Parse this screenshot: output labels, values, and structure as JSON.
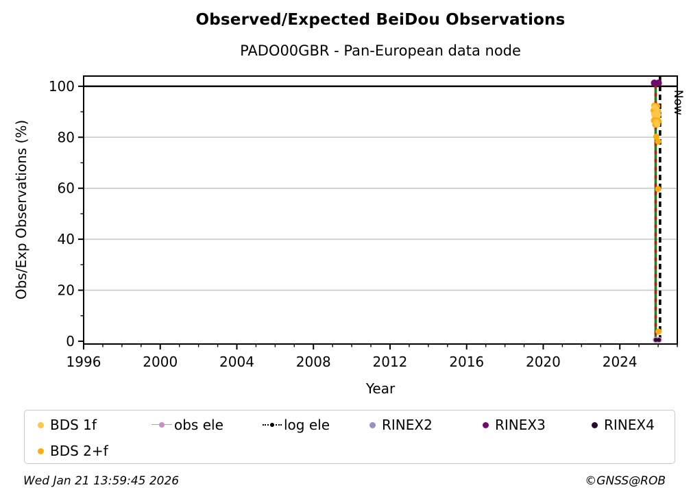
{
  "title": "Observed/Expected BeiDou Observations",
  "subtitle": "PADO00GBR - Pan-European data node",
  "footer": {
    "timestamp": "Wed Jan 21 13:59:45 2026",
    "credit": "©GNSS@ROB"
  },
  "legend": {
    "items": [
      {
        "label": "BDS 1f",
        "color": "#FFC64A",
        "marker": "dot"
      },
      {
        "label": "obs ele",
        "color": "#C98FC9",
        "marker": "line-dot"
      },
      {
        "label": "log ele",
        "color": "#000000",
        "marker": "dotted-dot"
      },
      {
        "label": "RINEX2",
        "color": "#9191CB",
        "marker": "dot"
      },
      {
        "label": "RINEX3",
        "color": "#6C0D6C",
        "marker": "dot"
      },
      {
        "label": "RINEX4",
        "color": "#2A0A35",
        "marker": "dot"
      },
      {
        "label": "BDS 2+f",
        "color": "#FFAD0D",
        "marker": "dot"
      }
    ]
  },
  "chart_data": {
    "type": "scatter",
    "title": "Observed/Expected BeiDou Observations",
    "subtitle": "PADO00GBR - Pan-European data node",
    "xlabel": "Year",
    "ylabel": "Obs/Exp Observations (%)",
    "xlim": [
      1996,
      2027
    ],
    "ylim": [
      -1.1,
      104.0
    ],
    "xticks": [
      1996,
      2000,
      2004,
      2008,
      2012,
      2016,
      2020,
      2024
    ],
    "xminor_step": 1,
    "yticks": [
      0,
      20,
      40,
      60,
      80,
      100
    ],
    "yminor_step": 10,
    "grid": "horizontal-major-gray",
    "grid_color": "#c6c6c6",
    "reference_line_100": {
      "y": 100,
      "color": "#000000"
    },
    "now_line": {
      "x": 2026.1,
      "label": "Now",
      "color": "#000000",
      "style": "dashed"
    },
    "status_line": {
      "x": 2025.87,
      "from": 100.6,
      "to": -0.6,
      "base_color": "#0E8C0E",
      "dash_color": "#CE1212"
    },
    "series": [
      {
        "name": "RINEX3",
        "color": "#6C0D6C",
        "size": 5,
        "points": [
          [
            2025.8,
            101.3
          ],
          [
            2026.02,
            101.3
          ]
        ]
      },
      {
        "name": "BDS 2+f",
        "color": "#FFAD0D",
        "size": 4.5,
        "points": [
          [
            2025.8,
            92.4
          ],
          [
            2025.95,
            92.2
          ],
          [
            2025.87,
            91.3
          ],
          [
            2025.76,
            90.5
          ],
          [
            2026.0,
            90.2
          ],
          [
            2025.9,
            89.4
          ],
          [
            2025.82,
            88.6
          ],
          [
            2025.97,
            88.2
          ],
          [
            2025.88,
            87.3
          ],
          [
            2025.78,
            86.6
          ],
          [
            2026.02,
            86.3
          ],
          [
            2025.92,
            85.5
          ],
          [
            2025.85,
            84.9
          ],
          [
            2025.9,
            80.2
          ],
          [
            2026.0,
            78.3
          ],
          [
            2026.0,
            59.7
          ],
          [
            2026.02,
            3.8
          ]
        ]
      },
      {
        "name": "BDS 1f",
        "color": "#FFC64A",
        "size": 4.5,
        "points": [
          [
            2025.83,
            91.8
          ],
          [
            2025.93,
            90.8
          ],
          [
            2025.79,
            89.0
          ],
          [
            2026.0,
            88.8
          ],
          [
            2025.9,
            86.0
          ],
          [
            2025.96,
            85.0
          ]
        ]
      },
      {
        "name": "obs ele",
        "color": "#C98FC9",
        "size": 4.5,
        "points": [
          [
            2025.88,
            0.5
          ],
          [
            2026.04,
            0.5
          ]
        ]
      },
      {
        "name": "log ele",
        "color": "#000000",
        "size": 2.5,
        "points": []
      },
      {
        "name": "RINEX2",
        "color": "#9191CB",
        "size": 4,
        "points": []
      },
      {
        "name": "RINEX4",
        "color": "#2A0A35",
        "size": 3,
        "points": [
          [
            2025.88,
            0.5
          ],
          [
            2026.04,
            0.5
          ]
        ]
      }
    ]
  }
}
